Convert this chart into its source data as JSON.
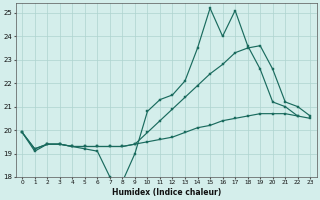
{
  "xlabel": "Humidex (Indice chaleur)",
  "background_color": "#d4eeeb",
  "grid_color": "#aed4cf",
  "line_color": "#1a6b5e",
  "xlim": [
    -0.5,
    23.5
  ],
  "ylim": [
    18,
    25.4
  ],
  "xticks": [
    0,
    1,
    2,
    3,
    4,
    5,
    6,
    7,
    8,
    9,
    10,
    11,
    12,
    13,
    14,
    15,
    16,
    17,
    18,
    19,
    20,
    21,
    22,
    23
  ],
  "yticks": [
    18,
    19,
    20,
    21,
    22,
    23,
    24,
    25
  ],
  "hours": [
    0,
    1,
    2,
    3,
    4,
    5,
    6,
    7,
    8,
    9,
    10,
    11,
    12,
    13,
    14,
    15,
    16,
    17,
    18,
    19,
    20,
    21,
    22,
    23
  ],
  "line1": [
    19.9,
    19.1,
    19.4,
    19.4,
    19.3,
    19.2,
    19.1,
    18.0,
    17.8,
    19.0,
    20.8,
    21.3,
    21.5,
    22.1,
    23.5,
    25.2,
    24.0,
    25.1,
    23.6,
    22.6,
    21.2,
    21.0,
    20.6,
    null
  ],
  "line2": [
    19.9,
    19.2,
    19.4,
    19.4,
    19.3,
    19.3,
    19.3,
    19.3,
    19.3,
    19.4,
    19.9,
    20.4,
    20.9,
    21.4,
    21.9,
    22.4,
    22.8,
    23.3,
    23.5,
    23.6,
    22.6,
    21.2,
    21.0,
    20.6
  ],
  "line3": [
    19.9,
    19.2,
    19.4,
    19.4,
    19.3,
    19.3,
    19.3,
    19.3,
    19.3,
    19.4,
    19.5,
    19.6,
    19.7,
    19.9,
    20.1,
    20.2,
    20.4,
    20.5,
    20.6,
    20.7,
    20.7,
    20.7,
    20.6,
    20.5
  ]
}
